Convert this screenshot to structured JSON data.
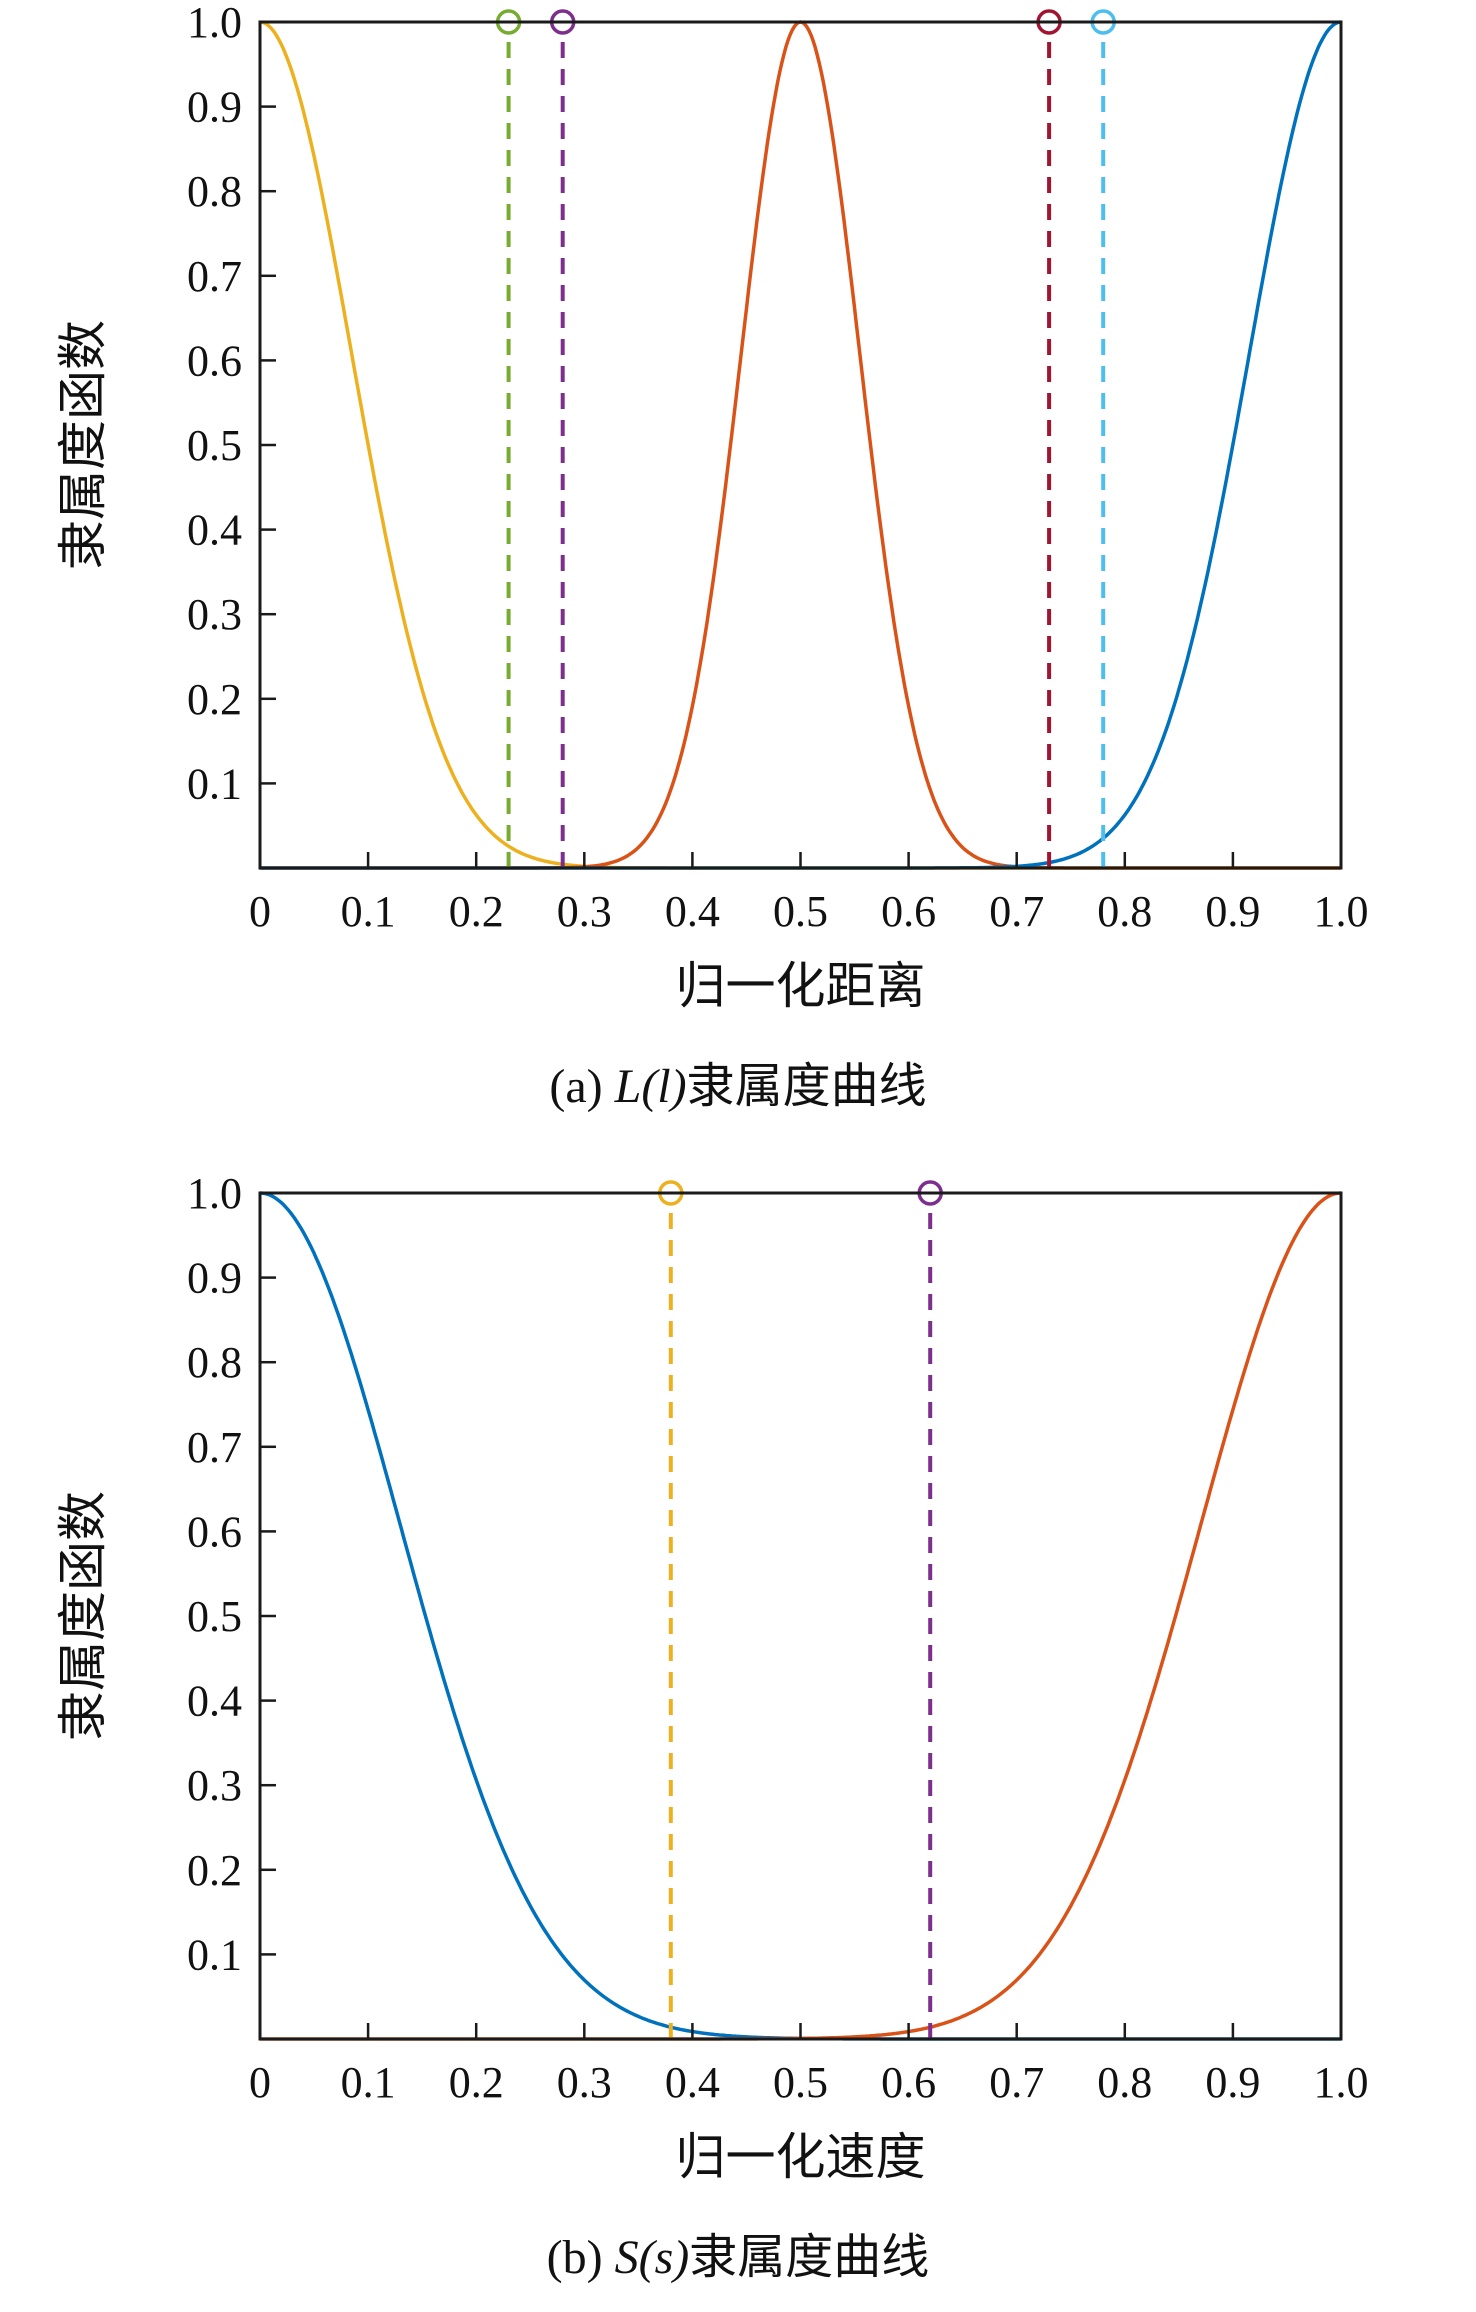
{
  "page": {
    "background": "#ffffff",
    "axis_color": "#1a1a1a"
  },
  "captions": [
    {
      "prefix": "(a) ",
      "formula": "L(l)",
      "suffix": "隶属度曲线"
    },
    {
      "prefix": "(b) ",
      "formula": "S(s)",
      "suffix": "隶属度曲线"
    }
  ],
  "chart_data": [
    {
      "type": "line",
      "title": "(a) L(l)隶属度曲线",
      "xlabel": "归一化距离",
      "ylabel": "隶属度函数",
      "xlim": [
        0,
        1
      ],
      "ylim": [
        0,
        1
      ],
      "grid": false,
      "legend": "none",
      "x_ticks": [
        {
          "v": 0,
          "label": "0"
        },
        {
          "v": 0.1,
          "label": "0.1"
        },
        {
          "v": 0.2,
          "label": "0.2"
        },
        {
          "v": 0.3,
          "label": "0.3"
        },
        {
          "v": 0.4,
          "label": "0.4"
        },
        {
          "v": 0.5,
          "label": "0.5"
        },
        {
          "v": 0.6,
          "label": "0.6"
        },
        {
          "v": 0.7,
          "label": "0.7"
        },
        {
          "v": 0.8,
          "label": "0.8"
        },
        {
          "v": 0.9,
          "label": "0.9"
        },
        {
          "v": 1,
          "label": "1.0"
        }
      ],
      "y_ticks": [
        {
          "v": 0.1,
          "label": "0.1"
        },
        {
          "v": 0.2,
          "label": "0.2"
        },
        {
          "v": 0.3,
          "label": "0.3"
        },
        {
          "v": 0.4,
          "label": "0.4"
        },
        {
          "v": 0.5,
          "label": "0.5"
        },
        {
          "v": 0.6,
          "label": "0.6"
        },
        {
          "v": 0.7,
          "label": "0.7"
        },
        {
          "v": 0.8,
          "label": "0.8"
        },
        {
          "v": 0.9,
          "label": "0.9"
        },
        {
          "v": 1,
          "label": "1.0"
        }
      ],
      "series": [
        {
          "shape": "gaussian",
          "mean": 0.0,
          "sigma": 0.085,
          "peak": 1.0,
          "color": "#EDB120"
        },
        {
          "shape": "gaussian",
          "mean": 0.5,
          "sigma": 0.055,
          "peak": 1.0,
          "color": "#D95319"
        },
        {
          "shape": "gaussian",
          "mean": 1.0,
          "sigma": 0.085,
          "peak": 1.0,
          "color": "#0072BD"
        }
      ],
      "vlines": [
        {
          "x": 0.23,
          "y": 1.0,
          "color": "#77AC30",
          "style": "dashed",
          "marker": "circle"
        },
        {
          "x": 0.28,
          "y": 1.0,
          "color": "#7E2F8E",
          "style": "dashed",
          "marker": "circle"
        },
        {
          "x": 0.73,
          "y": 1.0,
          "color": "#A2142F",
          "style": "dashed",
          "marker": "circle"
        },
        {
          "x": 0.78,
          "y": 1.0,
          "color": "#4DBEEE",
          "style": "dashed",
          "marker": "circle"
        }
      ]
    },
    {
      "type": "line",
      "title": "(b) S(s)隶属度曲线",
      "xlabel": "归一化速度",
      "ylabel": "隶属度函数",
      "xlim": [
        0,
        1
      ],
      "ylim": [
        0,
        1
      ],
      "grid": false,
      "legend": "none",
      "x_ticks": [
        {
          "v": 0,
          "label": "0"
        },
        {
          "v": 0.1,
          "label": "0.1"
        },
        {
          "v": 0.2,
          "label": "0.2"
        },
        {
          "v": 0.3,
          "label": "0.3"
        },
        {
          "v": 0.4,
          "label": "0.4"
        },
        {
          "v": 0.5,
          "label": "0.5"
        },
        {
          "v": 0.6,
          "label": "0.6"
        },
        {
          "v": 0.7,
          "label": "0.7"
        },
        {
          "v": 0.8,
          "label": "0.8"
        },
        {
          "v": 0.9,
          "label": "0.9"
        },
        {
          "v": 1,
          "label": "1.0"
        }
      ],
      "y_ticks": [
        {
          "v": 0.1,
          "label": "0.1"
        },
        {
          "v": 0.2,
          "label": "0.2"
        },
        {
          "v": 0.3,
          "label": "0.3"
        },
        {
          "v": 0.4,
          "label": "0.4"
        },
        {
          "v": 0.5,
          "label": "0.5"
        },
        {
          "v": 0.6,
          "label": "0.6"
        },
        {
          "v": 0.7,
          "label": "0.7"
        },
        {
          "v": 0.8,
          "label": "0.8"
        },
        {
          "v": 0.9,
          "label": "0.9"
        },
        {
          "v": 1,
          "label": "1.0"
        }
      ],
      "series": [
        {
          "shape": "gaussian",
          "mean": 0.0,
          "sigma": 0.13,
          "peak": 1.0,
          "color": "#0072BD"
        },
        {
          "shape": "gaussian",
          "mean": 1.0,
          "sigma": 0.13,
          "peak": 1.0,
          "color": "#D95319"
        }
      ],
      "vlines": [
        {
          "x": 0.38,
          "y": 1.0,
          "color": "#EDB120",
          "style": "dashed",
          "marker": "circle"
        },
        {
          "x": 0.62,
          "y": 1.0,
          "color": "#7E2F8E",
          "style": "dashed",
          "marker": "circle"
        }
      ]
    }
  ]
}
